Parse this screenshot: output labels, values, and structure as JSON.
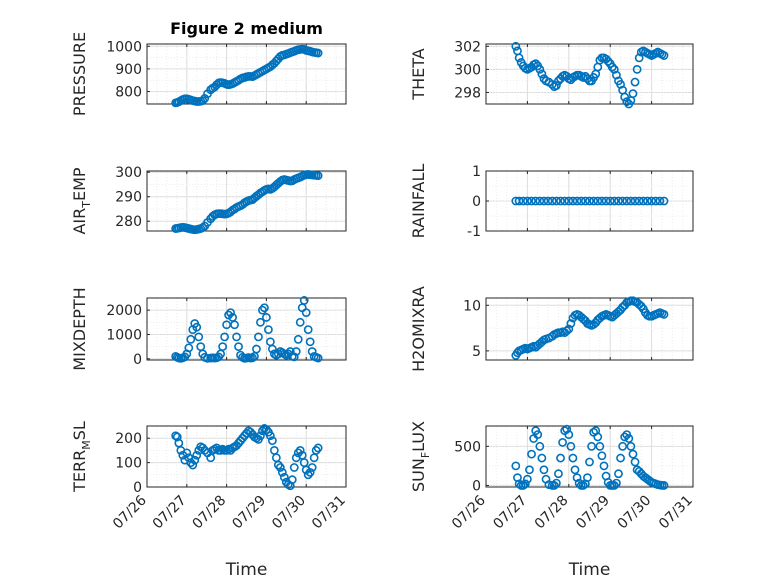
{
  "figure": {
    "title": "Figure 2 medium"
  },
  "colors": {
    "marker": "#0072BD",
    "axis": "#262626",
    "grid": "#dcdcdc",
    "minorgrid": "#ececec"
  },
  "chart_data": [
    {
      "type": "scatter",
      "title": "Figure 2 medium",
      "ylabel": "PRESSURE",
      "ylim": [
        745,
        1010
      ],
      "yticks": [
        "800",
        "900",
        "1000"
      ],
      "xlim": [
        0,
        5
      ],
      "x": [
        0.72,
        0.76,
        0.8,
        0.85,
        0.9,
        0.95,
        1.0,
        1.05,
        1.1,
        1.15,
        1.2,
        1.25,
        1.3,
        1.35,
        1.4,
        1.45,
        1.52,
        1.6,
        1.65,
        1.7,
        1.75,
        1.8,
        1.85,
        1.9,
        1.95,
        2.0,
        2.05,
        2.1,
        2.15,
        2.2,
        2.25,
        2.3,
        2.35,
        2.4,
        2.45,
        2.5,
        2.55,
        2.6,
        2.65,
        2.7,
        2.75,
        2.8,
        2.85,
        2.9,
        2.95,
        3.0,
        3.05,
        3.1,
        3.15,
        3.2,
        3.25,
        3.3,
        3.35,
        3.4,
        3.45,
        3.5,
        3.55,
        3.6,
        3.65,
        3.7,
        3.75,
        3.8,
        3.85,
        3.9,
        3.95,
        4.0,
        4.05,
        4.1,
        4.15,
        4.2,
        4.25,
        4.3
      ],
      "y": [
        750,
        752,
        755,
        760,
        765,
        768,
        768,
        766,
        763,
        760,
        758,
        756,
        756,
        757,
        760,
        770,
        790,
        808,
        815,
        820,
        830,
        838,
        840,
        839,
        836,
        832,
        830,
        832,
        835,
        840,
        845,
        850,
        856,
        860,
        862,
        865,
        867,
        867,
        866,
        870,
        875,
        880,
        885,
        890,
        895,
        900,
        905,
        910,
        918,
        925,
        935,
        945,
        955,
        960,
        962,
        965,
        968,
        972,
        975,
        978,
        982,
        985,
        986,
        987,
        986,
        982,
        980,
        978,
        975,
        973,
        972,
        970
      ]
    },
    {
      "type": "scatter",
      "ylabel": "THETA",
      "ylim": [
        297,
        302.2
      ],
      "yticks": [
        "298",
        "300",
        "302"
      ],
      "xlim": [
        0,
        5
      ],
      "x": [
        0.72,
        0.76,
        0.8,
        0.85,
        0.9,
        0.95,
        1.0,
        1.05,
        1.1,
        1.15,
        1.2,
        1.25,
        1.3,
        1.35,
        1.4,
        1.45,
        1.52,
        1.6,
        1.65,
        1.7,
        1.75,
        1.8,
        1.85,
        1.9,
        1.95,
        2.0,
        2.05,
        2.1,
        2.15,
        2.2,
        2.25,
        2.3,
        2.35,
        2.4,
        2.45,
        2.5,
        2.55,
        2.6,
        2.65,
        2.7,
        2.75,
        2.8,
        2.85,
        2.9,
        2.95,
        3.0,
        3.05,
        3.1,
        3.15,
        3.2,
        3.25,
        3.3,
        3.35,
        3.4,
        3.45,
        3.5,
        3.55,
        3.6,
        3.65,
        3.7,
        3.75,
        3.8,
        3.85,
        3.9,
        3.95,
        4.0,
        4.05,
        4.1,
        4.15,
        4.2,
        4.25,
        4.3
      ],
      "y": [
        302.0,
        301.6,
        301.0,
        300.6,
        300.3,
        300.1,
        300.0,
        300.1,
        300.2,
        300.4,
        300.5,
        300.3,
        300.0,
        299.6,
        299.2,
        299.0,
        298.9,
        298.7,
        298.5,
        298.6,
        299.0,
        299.2,
        299.4,
        299.5,
        299.4,
        299.2,
        299.1,
        299.3,
        299.4,
        299.5,
        299.5,
        299.4,
        299.3,
        299.4,
        299.2,
        299.0,
        299.0,
        299.3,
        299.6,
        300.2,
        300.8,
        301.0,
        301.0,
        300.9,
        300.7,
        300.5,
        300.2,
        300.0,
        299.5,
        299.0,
        298.7,
        298.2,
        297.6,
        297.2,
        297.0,
        297.3,
        297.9,
        298.9,
        300.0,
        301.0,
        301.5,
        301.6,
        301.5,
        301.4,
        301.3,
        301.2,
        301.3,
        301.4,
        301.5,
        301.4,
        301.3,
        301.2
      ]
    },
    {
      "type": "scatter",
      "ylabel_main": "AIR",
      "ylabel_sub": "T",
      "ylabel_tail": "EMP",
      "ylim": [
        276,
        300.5
      ],
      "yticks": [
        "280",
        "290",
        "300"
      ],
      "xlim": [
        0,
        5
      ],
      "x": [
        0.72,
        0.76,
        0.8,
        0.85,
        0.9,
        0.95,
        1.0,
        1.05,
        1.1,
        1.15,
        1.2,
        1.25,
        1.3,
        1.35,
        1.4,
        1.45,
        1.52,
        1.6,
        1.65,
        1.7,
        1.75,
        1.8,
        1.85,
        1.9,
        1.95,
        2.0,
        2.05,
        2.1,
        2.15,
        2.2,
        2.25,
        2.3,
        2.35,
        2.4,
        2.45,
        2.5,
        2.55,
        2.6,
        2.65,
        2.7,
        2.75,
        2.8,
        2.85,
        2.9,
        2.95,
        3.0,
        3.05,
        3.1,
        3.15,
        3.2,
        3.25,
        3.3,
        3.35,
        3.4,
        3.45,
        3.5,
        3.55,
        3.6,
        3.65,
        3.7,
        3.75,
        3.8,
        3.85,
        3.9,
        3.95,
        4.0,
        4.05,
        4.1,
        4.15,
        4.2,
        4.25,
        4.3
      ],
      "y": [
        277.0,
        277.1,
        277.2,
        277.4,
        277.5,
        277.4,
        277.2,
        277.0,
        276.8,
        276.6,
        276.5,
        276.6,
        276.8,
        277.0,
        277.4,
        278.0,
        279.5,
        281.0,
        282.0,
        282.6,
        283.0,
        283.1,
        283.1,
        283.0,
        282.9,
        283.0,
        283.3,
        283.8,
        284.5,
        285.0,
        285.6,
        286.0,
        286.3,
        286.8,
        287.5,
        288.0,
        288.4,
        288.6,
        288.8,
        289.5,
        290.2,
        290.8,
        291.5,
        292.0,
        292.6,
        293.0,
        293.2,
        293.0,
        293.4,
        294.0,
        294.8,
        295.5,
        296.2,
        296.8,
        297.0,
        296.8,
        296.6,
        296.4,
        296.5,
        297.0,
        297.4,
        297.7,
        298.0,
        298.4,
        298.8,
        299.0,
        299.1,
        299.0,
        298.9,
        298.8,
        298.7,
        298.6
      ]
    },
    {
      "type": "scatter",
      "ylabel": "RAINFALL",
      "ylim": [
        -1,
        1
      ],
      "yticks": [
        "-1",
        "0",
        "1"
      ],
      "xlim": [
        0,
        5
      ],
      "x": [
        0.72,
        0.8,
        0.9,
        1.0,
        1.1,
        1.2,
        1.3,
        1.4,
        1.5,
        1.6,
        1.7,
        1.8,
        1.9,
        2.0,
        2.1,
        2.2,
        2.3,
        2.4,
        2.5,
        2.6,
        2.7,
        2.8,
        2.9,
        3.0,
        3.1,
        3.2,
        3.3,
        3.4,
        3.5,
        3.6,
        3.7,
        3.8,
        3.9,
        4.0,
        4.1,
        4.2,
        4.3
      ],
      "y": [
        0,
        0,
        0,
        0,
        0,
        0,
        0,
        0,
        0,
        0,
        0,
        0,
        0,
        0,
        0,
        0,
        0,
        0,
        0,
        0,
        0,
        0,
        0,
        0,
        0,
        0,
        0,
        0,
        0,
        0,
        0,
        0,
        0,
        0,
        0,
        0,
        0
      ]
    },
    {
      "type": "scatter",
      "ylabel": "MIXDEPTH",
      "ylim": [
        -50,
        2500
      ],
      "yticks": [
        "0",
        "1000",
        "2000"
      ],
      "xlim": [
        0,
        5
      ],
      "x": [
        0.72,
        0.76,
        0.8,
        0.85,
        0.9,
        0.95,
        1.0,
        1.05,
        1.1,
        1.15,
        1.2,
        1.25,
        1.3,
        1.35,
        1.4,
        1.45,
        1.52,
        1.6,
        1.65,
        1.7,
        1.75,
        1.8,
        1.85,
        1.9,
        1.95,
        2.0,
        2.05,
        2.1,
        2.15,
        2.2,
        2.25,
        2.3,
        2.35,
        2.4,
        2.45,
        2.5,
        2.55,
        2.6,
        2.65,
        2.7,
        2.75,
        2.8,
        2.85,
        2.9,
        2.95,
        3.0,
        3.05,
        3.1,
        3.15,
        3.2,
        3.25,
        3.3,
        3.35,
        3.4,
        3.45,
        3.5,
        3.55,
        3.6,
        3.65,
        3.7,
        3.75,
        3.8,
        3.85,
        3.9,
        3.95,
        4.0,
        4.05,
        4.1,
        4.15,
        4.2,
        4.25,
        4.3
      ],
      "y": [
        100,
        60,
        30,
        20,
        40,
        80,
        200,
        450,
        800,
        1200,
        1450,
        1300,
        900,
        500,
        200,
        60,
        20,
        30,
        40,
        30,
        40,
        80,
        200,
        500,
        900,
        1400,
        1800,
        1900,
        1700,
        1400,
        900,
        500,
        150,
        60,
        20,
        30,
        50,
        30,
        40,
        100,
        400,
        900,
        1500,
        2000,
        2100,
        1700,
        1200,
        700,
        400,
        200,
        150,
        200,
        300,
        250,
        200,
        150,
        200,
        300,
        100,
        80,
        300,
        800,
        1500,
        2100,
        2400,
        1900,
        1200,
        700,
        300,
        100,
        60,
        30
      ]
    },
    {
      "type": "scatter",
      "ylabel": "H2OMIXRA",
      "ylim": [
        4,
        10.8
      ],
      "yticks": [
        "5",
        "10"
      ],
      "xlim": [
        0,
        5
      ],
      "x": [
        0.72,
        0.76,
        0.8,
        0.85,
        0.9,
        0.95,
        1.0,
        1.05,
        1.1,
        1.15,
        1.2,
        1.25,
        1.3,
        1.35,
        1.4,
        1.45,
        1.52,
        1.6,
        1.65,
        1.7,
        1.75,
        1.8,
        1.85,
        1.9,
        1.95,
        2.0,
        2.05,
        2.1,
        2.15,
        2.2,
        2.25,
        2.3,
        2.35,
        2.4,
        2.45,
        2.5,
        2.55,
        2.6,
        2.65,
        2.7,
        2.75,
        2.8,
        2.85,
        2.9,
        2.95,
        3.0,
        3.05,
        3.1,
        3.15,
        3.2,
        3.25,
        3.3,
        3.35,
        3.4,
        3.45,
        3.5,
        3.55,
        3.6,
        3.65,
        3.7,
        3.75,
        3.8,
        3.85,
        3.9,
        3.95,
        4.0,
        4.05,
        4.1,
        4.15,
        4.2,
        4.25,
        4.3
      ],
      "y": [
        4.5,
        4.8,
        5.0,
        5.1,
        5.2,
        5.3,
        5.2,
        5.3,
        5.4,
        5.5,
        5.4,
        5.6,
        5.8,
        6.0,
        6.2,
        6.3,
        6.4,
        6.6,
        6.8,
        6.9,
        7.0,
        7.0,
        7.1,
        7.0,
        7.2,
        7.4,
        8.0,
        8.6,
        8.9,
        9.0,
        8.9,
        8.7,
        8.5,
        8.3,
        8.0,
        7.9,
        7.8,
        7.9,
        8.1,
        8.4,
        8.6,
        8.8,
        8.9,
        9.0,
        8.9,
        8.8,
        8.7,
        8.9,
        9.1,
        9.3,
        9.5,
        9.8,
        10.0,
        10.3,
        10.4,
        10.5,
        10.5,
        10.4,
        10.3,
        10.1,
        9.9,
        9.6,
        9.2,
        8.9,
        8.8,
        8.8,
        8.9,
        9.0,
        9.1,
        9.2,
        9.1,
        9.0
      ]
    },
    {
      "type": "scatter",
      "ylabel_main": "TERR",
      "ylabel_sub": "M",
      "ylabel_tail": "SL",
      "ylim": [
        0,
        250
      ],
      "yticks": [
        "0",
        "100",
        "200"
      ],
      "xlim": [
        0,
        5
      ],
      "x": [
        0.72,
        0.76,
        0.8,
        0.85,
        0.9,
        0.95,
        1.0,
        1.05,
        1.1,
        1.15,
        1.2,
        1.25,
        1.3,
        1.35,
        1.4,
        1.45,
        1.52,
        1.6,
        1.65,
        1.7,
        1.75,
        1.8,
        1.85,
        1.9,
        1.95,
        2.0,
        2.05,
        2.1,
        2.15,
        2.2,
        2.25,
        2.3,
        2.35,
        2.4,
        2.45,
        2.5,
        2.55,
        2.6,
        2.65,
        2.7,
        2.75,
        2.8,
        2.85,
        2.9,
        2.95,
        3.0,
        3.05,
        3.1,
        3.15,
        3.2,
        3.25,
        3.3,
        3.35,
        3.4,
        3.45,
        3.5,
        3.55,
        3.6,
        3.65,
        3.7,
        3.75,
        3.8,
        3.85,
        3.9,
        3.95,
        4.0,
        4.05,
        4.1,
        4.15,
        4.2,
        4.25,
        4.3
      ],
      "y": [
        210,
        205,
        180,
        150,
        130,
        110,
        140,
        120,
        100,
        90,
        110,
        130,
        150,
        165,
        160,
        150,
        140,
        120,
        150,
        155,
        160,
        150,
        150,
        155,
        150,
        150,
        155,
        150,
        160,
        165,
        170,
        180,
        190,
        200,
        210,
        220,
        230,
        225,
        215,
        205,
        200,
        195,
        210,
        230,
        240,
        235,
        225,
        210,
        190,
        150,
        120,
        90,
        80,
        60,
        40,
        20,
        10,
        5,
        30,
        80,
        120,
        140,
        150,
        130,
        100,
        70,
        50,
        60,
        80,
        120,
        150,
        160
      ]
    },
    {
      "type": "scatter",
      "ylabel_main": "SUN",
      "ylabel_sub": "F",
      "ylabel_tail": "LUX",
      "ylim": [
        -20,
        760
      ],
      "yticks": [
        "0",
        "500"
      ],
      "xlim": [
        0,
        5
      ],
      "x": [
        0.72,
        0.76,
        0.8,
        0.85,
        0.9,
        0.95,
        1.0,
        1.05,
        1.1,
        1.15,
        1.2,
        1.25,
        1.3,
        1.35,
        1.4,
        1.45,
        1.52,
        1.6,
        1.65,
        1.7,
        1.75,
        1.8,
        1.85,
        1.9,
        1.95,
        2.0,
        2.05,
        2.1,
        2.15,
        2.2,
        2.25,
        2.3,
        2.35,
        2.4,
        2.45,
        2.5,
        2.55,
        2.6,
        2.65,
        2.7,
        2.75,
        2.8,
        2.85,
        2.9,
        2.95,
        3.0,
        3.05,
        3.1,
        3.15,
        3.2,
        3.25,
        3.3,
        3.35,
        3.4,
        3.45,
        3.5,
        3.55,
        3.6,
        3.65,
        3.7,
        3.75,
        3.8,
        3.85,
        3.9,
        3.95,
        4.0,
        4.05,
        4.1,
        4.15,
        4.2,
        4.25,
        4.3
      ],
      "y": [
        250,
        100,
        20,
        0,
        0,
        20,
        80,
        200,
        400,
        600,
        700,
        650,
        500,
        350,
        200,
        80,
        10,
        0,
        0,
        30,
        150,
        350,
        550,
        700,
        720,
        650,
        500,
        350,
        200,
        100,
        30,
        0,
        0,
        20,
        100,
        300,
        500,
        680,
        700,
        620,
        500,
        380,
        250,
        120,
        40,
        0,
        0,
        0,
        30,
        150,
        350,
        500,
        620,
        650,
        600,
        500,
        400,
        300,
        200,
        180,
        150,
        120,
        100,
        80,
        60,
        40,
        30,
        20,
        10,
        5,
        0,
        0
      ]
    }
  ],
  "xaxis": {
    "ticks": [
      "07/26",
      "07/27",
      "07/28",
      "07/29",
      "07/30",
      "07/31"
    ],
    "label": "Time"
  }
}
